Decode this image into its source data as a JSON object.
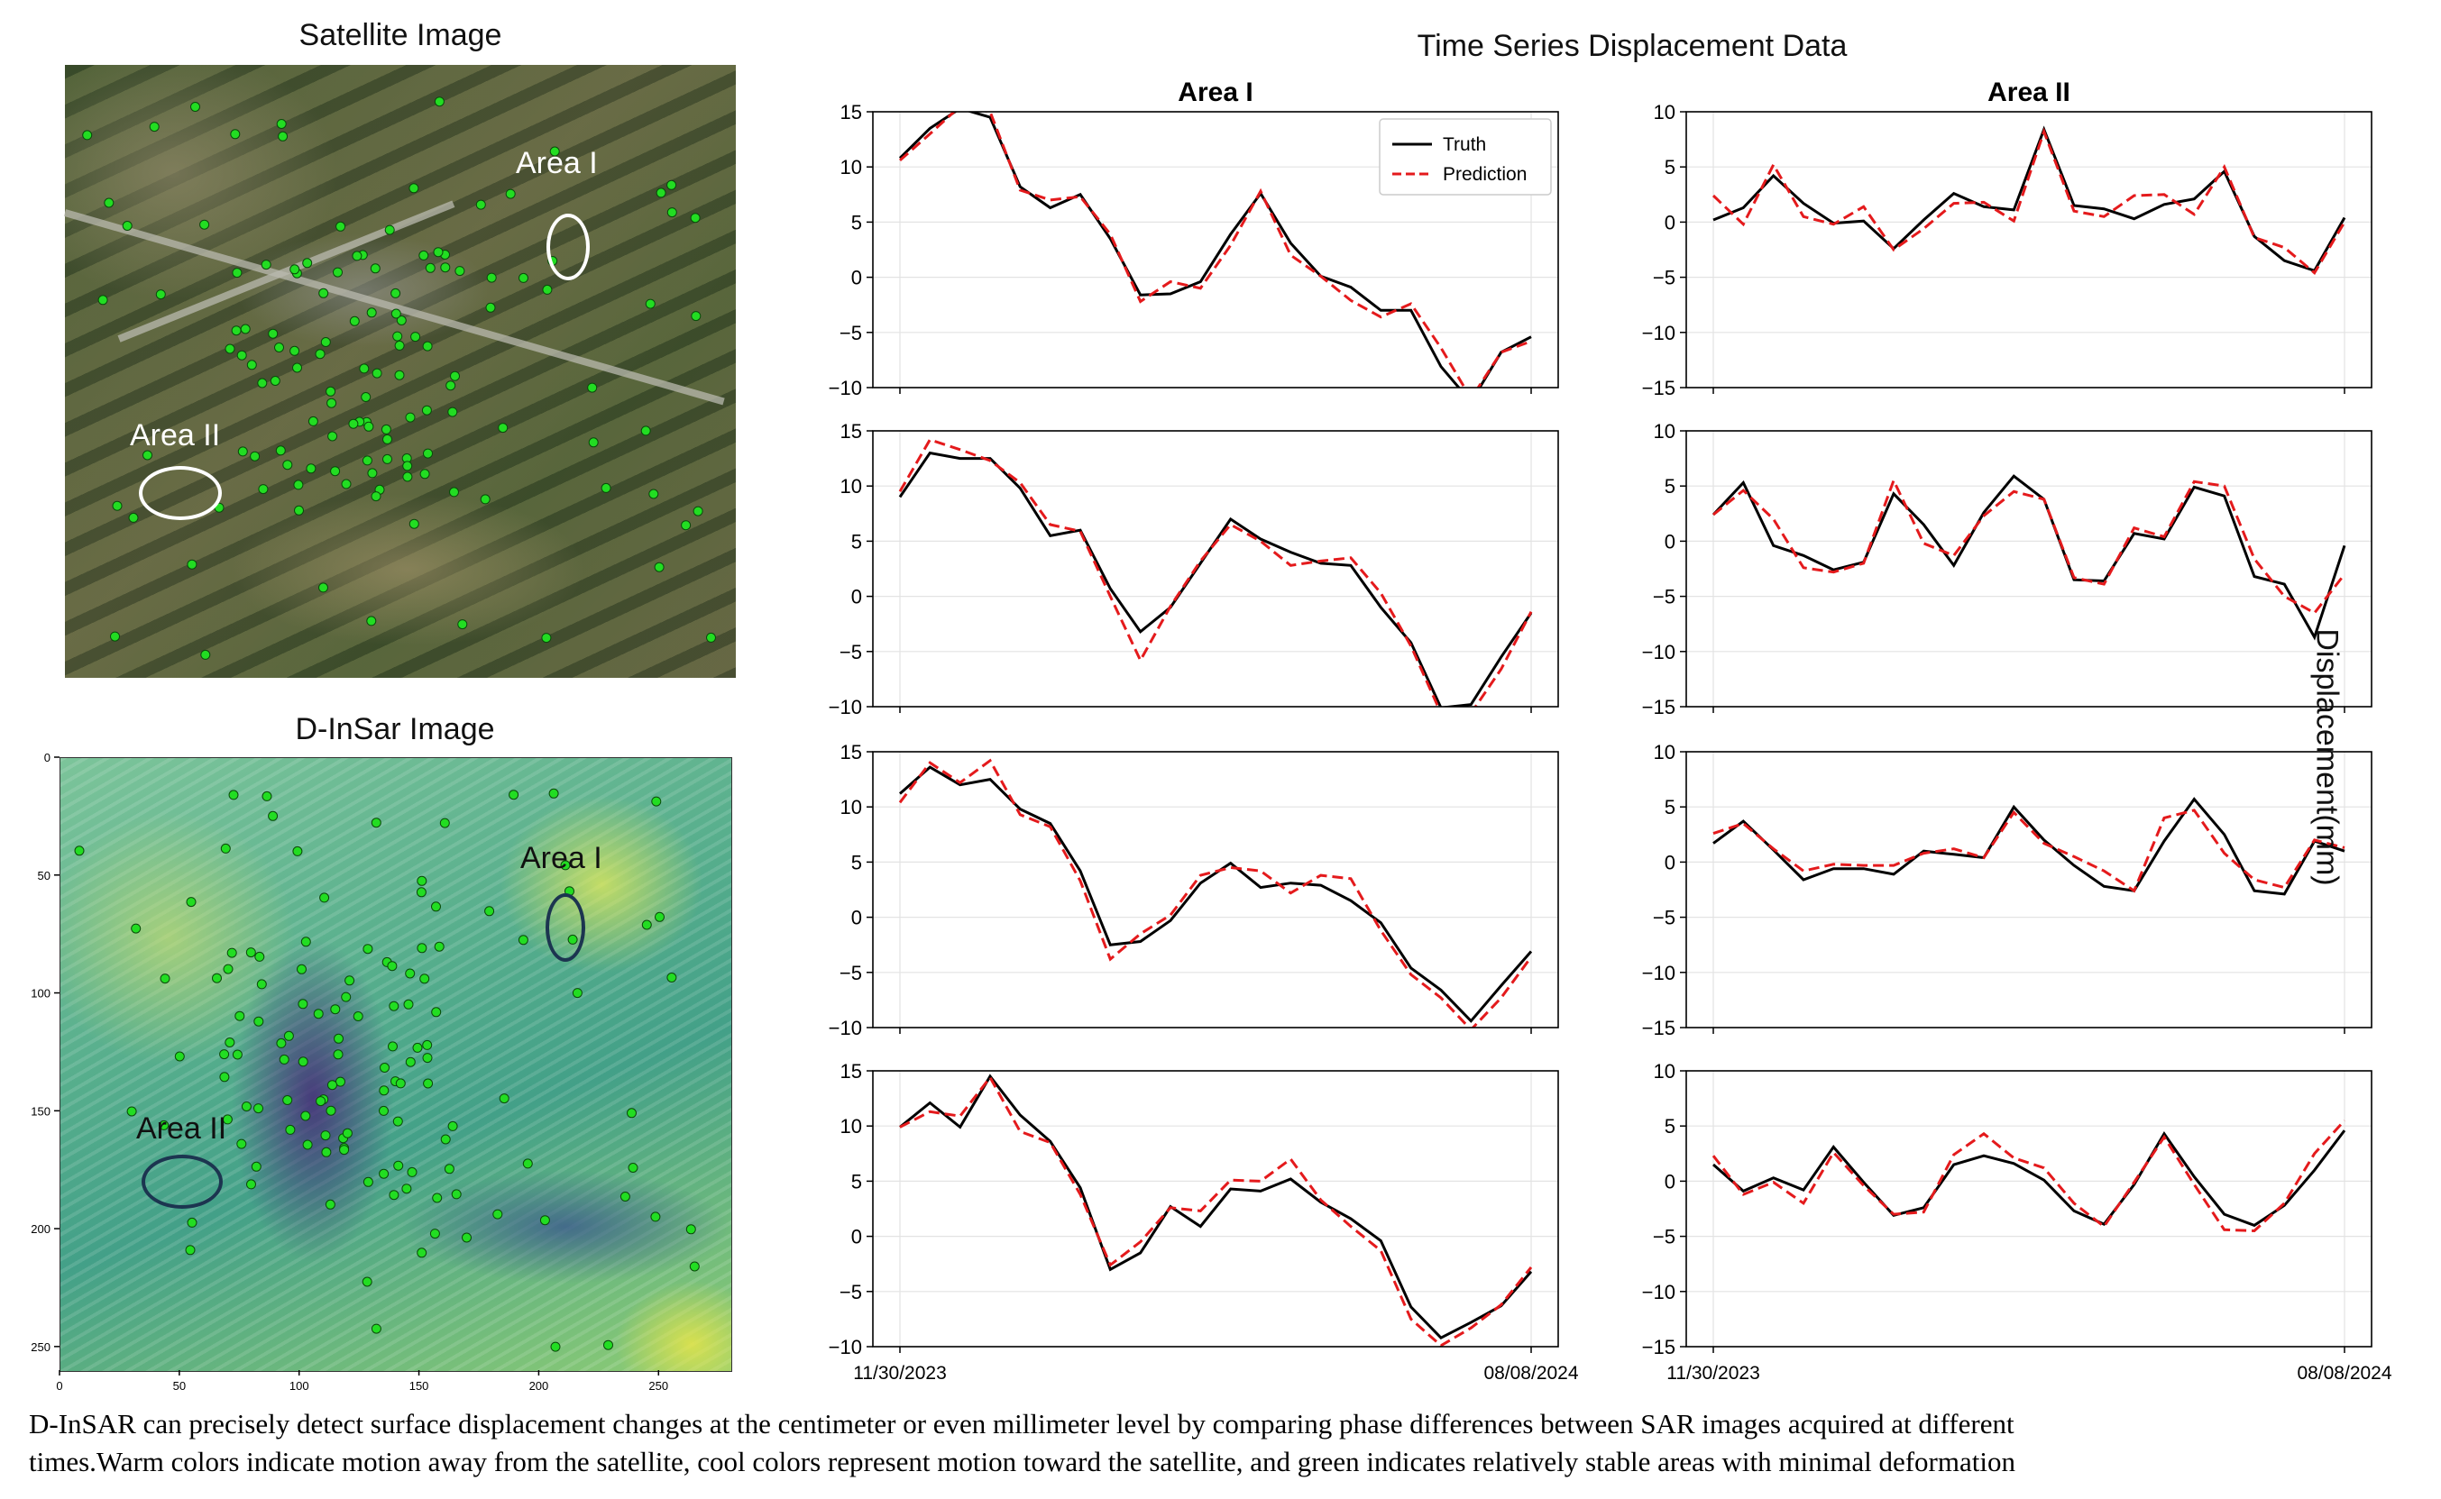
{
  "panels": {
    "satellite_title": "Satellite Image",
    "insar_title": "D-InSar Image",
    "ts_title": "Time Series Displacement Data",
    "area1_label": "Area I",
    "area2_label": "Area II",
    "y_axis_label": "Displacement(mm)"
  },
  "caption": {
    "line1": "D-InSAR can precisely detect surface displacement changes at the centimeter or even millimeter level by comparing phase differences between SAR images acquired at different",
    "line2": "times.Warm colors  indicate motion away from the satellite, cool colors represent motion toward the satellite, and green indicates relatively stable areas with minimal deformation"
  },
  "insar_axes": {
    "xticks": [
      "0",
      "50",
      "100",
      "150",
      "200",
      "250"
    ],
    "yticks": [
      "0",
      "50",
      "100",
      "150",
      "200",
      "250"
    ]
  },
  "colors": {
    "truth": "#000000",
    "prediction": "#e41a1c",
    "points": "#22dd22"
  },
  "chart_data": {
    "type": "line",
    "legend": [
      "Truth",
      "Prediction"
    ],
    "legend_position": "top-right",
    "grid": true,
    "x_tick_labels": [
      "11/30/2023",
      "08/08/2024"
    ],
    "columns": [
      {
        "title": "Area I",
        "ylim": [
          -10,
          15
        ],
        "yticks": [
          "15",
          "10",
          "5",
          "0",
          "−5",
          "−10"
        ],
        "charts": [
          {
            "truth": [
              10.8,
              13.5,
              15.3,
              14.5,
              8.2,
              6.3,
              7.5,
              3.5,
              -1.6,
              -1.5,
              -0.4,
              3.9,
              7.6,
              3.1,
              0.1,
              -0.9,
              -3.0,
              -3.0,
              -8.1,
              -11.3,
              -6.8,
              -5.4
            ],
            "prediction": [
              10.6,
              13.0,
              15.5,
              15.0,
              7.9,
              7.0,
              7.3,
              3.9,
              -2.2,
              -0.4,
              -1.0,
              2.9,
              7.8,
              2.0,
              0.1,
              -2.1,
              -3.6,
              -2.4,
              -6.4,
              -11.0,
              -6.8,
              -5.8
            ]
          },
          {
            "truth": [
              9.0,
              13.0,
              12.5,
              12.5,
              9.8,
              5.5,
              6.0,
              0.7,
              -3.2,
              -1.0,
              3.0,
              7.0,
              5.2,
              4.0,
              3.0,
              2.8,
              -1.0,
              -4.2,
              -10.1,
              -9.8,
              -5.5,
              -1.5
            ],
            "prediction": [
              9.5,
              14.2,
              13.3,
              12.3,
              10.3,
              6.5,
              5.9,
              0.0,
              -5.8,
              -0.9,
              3.2,
              6.5,
              5.0,
              2.8,
              3.2,
              3.5,
              0.3,
              -4.5,
              -10.6,
              -10.6,
              -6.6,
              -1.4
            ]
          },
          {
            "truth": [
              11.2,
              13.6,
              12.0,
              12.5,
              9.8,
              8.5,
              4.2,
              -2.5,
              -2.2,
              -0.3,
              3.1,
              4.9,
              2.7,
              3.1,
              2.9,
              1.5,
              -0.5,
              -4.6,
              -6.6,
              -9.4,
              -6.2,
              -3.1
            ],
            "prediction": [
              10.4,
              14.0,
              12.2,
              14.2,
              9.3,
              8.2,
              3.3,
              -3.8,
              -1.5,
              0.2,
              3.8,
              4.5,
              4.2,
              2.2,
              3.8,
              3.5,
              -1.2,
              -5.2,
              -7.3,
              -10.2,
              -7.3,
              -3.6
            ]
          },
          {
            "truth": [
              9.9,
              12.1,
              9.9,
              14.5,
              11.0,
              8.6,
              4.4,
              -3.0,
              -1.5,
              2.7,
              0.9,
              4.3,
              4.1,
              5.2,
              3.1,
              1.6,
              -0.4,
              -6.4,
              -9.2,
              -7.8,
              -6.3,
              -3.2
            ],
            "prediction": [
              9.9,
              11.3,
              10.9,
              14.4,
              9.5,
              8.5,
              3.8,
              -2.6,
              -0.5,
              2.6,
              2.3,
              5.1,
              5.0,
              7.0,
              3.3,
              0.9,
              -1.3,
              -7.5,
              -9.9,
              -8.3,
              -6.2,
              -2.8
            ]
          }
        ]
      },
      {
        "title": "Area II",
        "ylim": [
          -15,
          10
        ],
        "yticks": [
          "10",
          "5",
          "0",
          "−5",
          "−10",
          "−15"
        ],
        "charts": [
          {
            "truth": [
              0.2,
              1.3,
              4.2,
              1.7,
              -0.1,
              0.1,
              -2.4,
              0.2,
              2.6,
              1.4,
              1.1,
              8.4,
              1.5,
              1.2,
              0.3,
              1.6,
              2.1,
              4.6,
              -1.3,
              -3.5,
              -4.4,
              0.4
            ],
            "prediction": [
              2.4,
              -0.2,
              5.2,
              0.5,
              -0.2,
              1.4,
              -2.5,
              -0.6,
              1.7,
              1.8,
              0.1,
              8.2,
              1.0,
              0.5,
              2.4,
              2.5,
              0.7,
              5.0,
              -1.4,
              -2.3,
              -4.6,
              0.0
            ]
          },
          {
            "truth": [
              2.4,
              5.3,
              -0.4,
              -1.3,
              -2.6,
              -1.9,
              4.3,
              1.5,
              -2.2,
              2.6,
              5.9,
              3.8,
              -3.5,
              -3.6,
              0.7,
              0.2,
              4.9,
              4.1,
              -3.2,
              -3.9,
              -8.7,
              -0.4
            ],
            "prediction": [
              2.4,
              4.6,
              2.0,
              -2.4,
              -2.8,
              -2.0,
              5.5,
              -0.2,
              -1.3,
              2.3,
              4.5,
              3.8,
              -3.3,
              -3.9,
              1.2,
              0.4,
              5.4,
              5.0,
              -1.6,
              -5.0,
              -6.5,
              -3.0
            ]
          },
          {
            "truth": [
              1.7,
              3.7,
              1.1,
              -1.6,
              -0.6,
              -0.6,
              -1.1,
              1.0,
              0.7,
              0.4,
              5.0,
              2.0,
              -0.3,
              -2.2,
              -2.6,
              1.9,
              5.7,
              2.5,
              -2.6,
              -2.9,
              1.9,
              1.0
            ],
            "prediction": [
              2.6,
              3.5,
              1.2,
              -0.8,
              -0.2,
              -0.3,
              -0.3,
              0.8,
              1.2,
              0.4,
              4.5,
              1.7,
              0.5,
              -0.8,
              -2.6,
              4.0,
              4.7,
              0.8,
              -1.6,
              -2.3,
              2.0,
              1.3
            ]
          },
          {
            "truth": [
              1.5,
              -0.9,
              0.3,
              -0.8,
              3.1,
              -0.1,
              -3.1,
              -2.4,
              1.5,
              2.3,
              1.6,
              0.1,
              -2.7,
              -3.9,
              -0.3,
              4.3,
              0.4,
              -3.0,
              -4.0,
              -2.2,
              1.0,
              4.6
            ],
            "prediction": [
              2.3,
              -1.2,
              -0.1,
              -2.0,
              2.6,
              -0.4,
              -3.0,
              -2.8,
              2.4,
              4.3,
              2.1,
              1.2,
              -2.0,
              -4.1,
              -0.1,
              4.0,
              -0.3,
              -4.4,
              -4.5,
              -2.0,
              2.5,
              5.5
            ]
          }
        ]
      }
    ]
  }
}
